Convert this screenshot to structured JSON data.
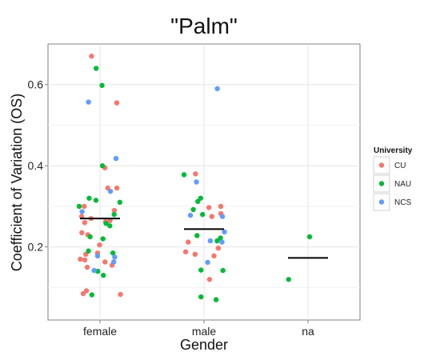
{
  "chart_data": {
    "type": "scatter",
    "title": "\"Palm\"",
    "xlabel": "Gender",
    "ylabel": "Coefficient of Variation (OS)",
    "categories": [
      "female",
      "male",
      "na"
    ],
    "ylim": [
      0.02,
      0.7
    ],
    "yticks": [
      0.2,
      0.4,
      0.6
    ],
    "yticklabels": [
      "0.2",
      "0.4",
      "0.6"
    ],
    "grid": true,
    "legend": {
      "title": "University",
      "position": "right"
    },
    "series": [
      {
        "name": "CU",
        "color": "#F8766D",
        "points": [
          {
            "x": "female",
            "y": 0.67
          },
          {
            "x": "female",
            "y": 0.555
          },
          {
            "x": "female",
            "y": 0.395
          },
          {
            "x": "female",
            "y": 0.345
          },
          {
            "x": "female",
            "y": 0.345
          },
          {
            "x": "female",
            "y": 0.3
          },
          {
            "x": "female",
            "y": 0.29
          },
          {
            "x": "female",
            "y": 0.275
          },
          {
            "x": "female",
            "y": 0.27
          },
          {
            "x": "female",
            "y": 0.265
          },
          {
            "x": "female",
            "y": 0.262
          },
          {
            "x": "female",
            "y": 0.26
          },
          {
            "x": "female",
            "y": 0.235
          },
          {
            "x": "female",
            "y": 0.23
          },
          {
            "x": "female",
            "y": 0.205
          },
          {
            "x": "female",
            "y": 0.185
          },
          {
            "x": "female",
            "y": 0.182
          },
          {
            "x": "female",
            "y": 0.17
          },
          {
            "x": "female",
            "y": 0.168
          },
          {
            "x": "female",
            "y": 0.163
          },
          {
            "x": "female",
            "y": 0.155
          },
          {
            "x": "female",
            "y": 0.15
          },
          {
            "x": "female",
            "y": 0.092
          },
          {
            "x": "female",
            "y": 0.085
          },
          {
            "x": "female",
            "y": 0.083
          },
          {
            "x": "male",
            "y": 0.38
          },
          {
            "x": "male",
            "y": 0.3
          },
          {
            "x": "male",
            "y": 0.297
          },
          {
            "x": "male",
            "y": 0.282
          },
          {
            "x": "male",
            "y": 0.275
          },
          {
            "x": "male",
            "y": 0.212
          },
          {
            "x": "male",
            "y": 0.197
          },
          {
            "x": "male",
            "y": 0.188
          },
          {
            "x": "male",
            "y": 0.182
          },
          {
            "x": "male",
            "y": 0.178
          },
          {
            "x": "male",
            "y": 0.12
          }
        ]
      },
      {
        "name": "NAU",
        "color": "#00BA38",
        "points": [
          {
            "x": "female",
            "y": 0.64
          },
          {
            "x": "female",
            "y": 0.598
          },
          {
            "x": "female",
            "y": 0.4
          },
          {
            "x": "female",
            "y": 0.32
          },
          {
            "x": "female",
            "y": 0.315
          },
          {
            "x": "female",
            "y": 0.31
          },
          {
            "x": "female",
            "y": 0.3
          },
          {
            "x": "female",
            "y": 0.28
          },
          {
            "x": "female",
            "y": 0.258
          },
          {
            "x": "female",
            "y": 0.252
          },
          {
            "x": "female",
            "y": 0.225
          },
          {
            "x": "female",
            "y": 0.22
          },
          {
            "x": "female",
            "y": 0.19
          },
          {
            "x": "female",
            "y": 0.185
          },
          {
            "x": "female",
            "y": 0.14
          },
          {
            "x": "female",
            "y": 0.13
          },
          {
            "x": "female",
            "y": 0.082
          },
          {
            "x": "male",
            "y": 0.378
          },
          {
            "x": "male",
            "y": 0.32
          },
          {
            "x": "male",
            "y": 0.312
          },
          {
            "x": "male",
            "y": 0.292
          },
          {
            "x": "male",
            "y": 0.28
          },
          {
            "x": "male",
            "y": 0.228
          },
          {
            "x": "male",
            "y": 0.222
          },
          {
            "x": "male",
            "y": 0.215
          },
          {
            "x": "male",
            "y": 0.143
          },
          {
            "x": "male",
            "y": 0.142
          },
          {
            "x": "male",
            "y": 0.077
          },
          {
            "x": "male",
            "y": 0.07
          },
          {
            "x": "na",
            "y": 0.225
          },
          {
            "x": "na",
            "y": 0.12
          }
        ]
      },
      {
        "name": "NCS",
        "color": "#619CFF",
        "points": [
          {
            "x": "female",
            "y": 0.557
          },
          {
            "x": "female",
            "y": 0.418
          },
          {
            "x": "female",
            "y": 0.337
          },
          {
            "x": "female",
            "y": 0.287
          },
          {
            "x": "female",
            "y": 0.178
          },
          {
            "x": "female",
            "y": 0.175
          },
          {
            "x": "female",
            "y": 0.163
          },
          {
            "x": "female",
            "y": 0.142
          },
          {
            "x": "male",
            "y": 0.59
          },
          {
            "x": "male",
            "y": 0.36
          },
          {
            "x": "male",
            "y": 0.278
          },
          {
            "x": "male",
            "y": 0.275
          },
          {
            "x": "male",
            "y": 0.237
          },
          {
            "x": "male",
            "y": 0.215
          },
          {
            "x": "male",
            "y": 0.212
          },
          {
            "x": "male",
            "y": 0.162
          }
        ]
      }
    ],
    "means": [
      {
        "x": "female",
        "y": 0.27
      },
      {
        "x": "male",
        "y": 0.244
      },
      {
        "x": "na",
        "y": 0.173
      }
    ],
    "mean_line_color": "#000000"
  }
}
